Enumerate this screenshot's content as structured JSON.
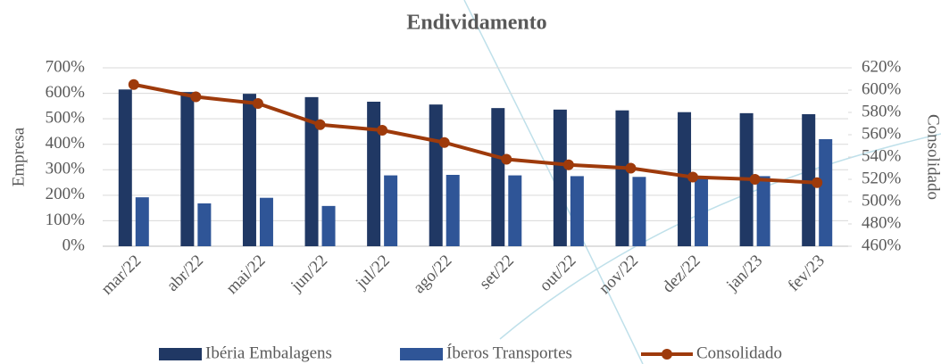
{
  "chart_data": {
    "type": "bar_line",
    "title": "Endividamento",
    "ylabel": "Empresa",
    "y2label": "Consolidado",
    "categories": [
      "mar/22",
      "abr/22",
      "mai/22",
      "jun/22",
      "jul/22",
      "ago/22",
      "set/22",
      "out/22",
      "nov/22",
      "dez/22",
      "jan/23",
      "fev/23"
    ],
    "series": [
      {
        "name": "Ibéria Embalagens",
        "type": "bar",
        "color": "#203864",
        "values": [
          615,
          605,
          598,
          585,
          567,
          556,
          542,
          536,
          533,
          526,
          522,
          518
        ]
      },
      {
        "name": "Íberos Transportes",
        "type": "bar",
        "color": "#2f5597",
        "values": [
          192,
          168,
          190,
          158,
          278,
          280,
          278,
          275,
          272,
          275,
          275,
          420
        ]
      },
      {
        "name": "Consolidado",
        "type": "line",
        "axis": "y2",
        "color": "#9e3a0b",
        "values": [
          605,
          594,
          588,
          569,
          564,
          553,
          538,
          533,
          530,
          522,
          520,
          517
        ]
      }
    ],
    "ylim": [
      0,
      700
    ],
    "yticks": [
      {
        "value": 0,
        "label": "0%"
      },
      {
        "value": 100,
        "label": "100%"
      },
      {
        "value": 200,
        "label": "200%"
      },
      {
        "value": 300,
        "label": "300%"
      },
      {
        "value": 400,
        "label": "400%"
      },
      {
        "value": 500,
        "label": "500%"
      },
      {
        "value": 600,
        "label": "600%"
      },
      {
        "value": 700,
        "label": "700%"
      }
    ],
    "y2lim": [
      460,
      620
    ],
    "y2ticks": [
      {
        "value": 460,
        "label": "460%"
      },
      {
        "value": 480,
        "label": "480%"
      },
      {
        "value": 500,
        "label": "500%"
      },
      {
        "value": 520,
        "label": "520%"
      },
      {
        "value": 540,
        "label": "540%"
      },
      {
        "value": 560,
        "label": "560%"
      },
      {
        "value": 580,
        "label": "580%"
      },
      {
        "value": 600,
        "label": "600%"
      },
      {
        "value": 620,
        "label": "620%"
      }
    ],
    "grid": true
  }
}
